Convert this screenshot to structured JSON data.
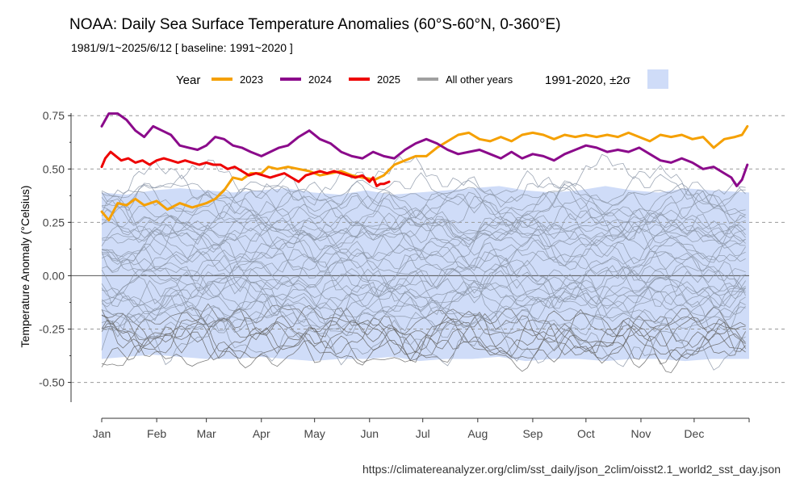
{
  "title": "NOAA: Daily Sea Surface Temperature Anomalies (60°S-60°N, 0-360°E)",
  "subtitle": "1981/9/1~2025/6/12   [ baseline: 1991~2020 ]",
  "source": "https://climatereanalyzer.org/clim/sst_daily/json_2clim/oisst2.1_world2_sst_day.json",
  "chart_data": {
    "type": "line",
    "xlabel": "",
    "ylabel": "Temperature Anomaly (°Celsius)",
    "xlim": [
      1,
      366
    ],
    "ylim": [
      -0.6,
      0.8
    ],
    "x_ticks": [
      {
        "day": 1,
        "label": "Jan"
      },
      {
        "day": 32,
        "label": "Feb"
      },
      {
        "day": 60,
        "label": "Mar"
      },
      {
        "day": 91,
        "label": "Apr"
      },
      {
        "day": 121,
        "label": "May"
      },
      {
        "day": 152,
        "label": "Jun"
      },
      {
        "day": 182,
        "label": "Jul"
      },
      {
        "day": 213,
        "label": "Aug"
      },
      {
        "day": 244,
        "label": "Sep"
      },
      {
        "day": 274,
        "label": "Oct"
      },
      {
        "day": 305,
        "label": "Nov"
      },
      {
        "day": 335,
        "label": "Dec"
      }
    ],
    "y_ticks": [
      {
        "value": 0.75,
        "label": "0.75"
      },
      {
        "value": 0.5,
        "label": "0.50"
      },
      {
        "value": 0.25,
        "label": "0.25"
      },
      {
        "value": 0.0,
        "label": "0.00"
      },
      {
        "value": -0.25,
        "label": "-0.25"
      },
      {
        "value": -0.5,
        "label": "-0.50"
      }
    ],
    "grid": "dashed horizontal at y ticks",
    "legend": {
      "placement": "top",
      "title": "Year",
      "items": [
        {
          "label": "2023",
          "color": "#f5a000"
        },
        {
          "label": "2024",
          "color": "#8b0a8b"
        },
        {
          "label": "2025",
          "color": "#ee0000"
        },
        {
          "label": "All other years",
          "color": "#a0a0a0"
        }
      ],
      "band_label": "1991-2020, ±2σ",
      "band_color": "#cfdcf8"
    },
    "band": {
      "name": "1991-2020, ±2σ",
      "x": [
        1,
        15,
        30,
        45,
        60,
        75,
        90,
        105,
        120,
        135,
        150,
        165,
        180,
        195,
        210,
        225,
        240,
        255,
        270,
        285,
        300,
        315,
        330,
        345,
        366
      ],
      "upper": [
        0.39,
        0.38,
        0.4,
        0.41,
        0.4,
        0.39,
        0.4,
        0.41,
        0.39,
        0.38,
        0.4,
        0.38,
        0.39,
        0.4,
        0.41,
        0.42,
        0.4,
        0.39,
        0.4,
        0.42,
        0.4,
        0.39,
        0.41,
        0.4,
        0.39
      ],
      "lower": [
        -0.39,
        -0.38,
        -0.37,
        -0.38,
        -0.39,
        -0.39,
        -0.38,
        -0.39,
        -0.4,
        -0.39,
        -0.39,
        -0.38,
        -0.4,
        -0.39,
        -0.39,
        -0.38,
        -0.4,
        -0.39,
        -0.39,
        -0.4,
        -0.39,
        -0.39,
        -0.4,
        -0.39,
        -0.39
      ]
    },
    "series": [
      {
        "name": "2023",
        "color": "#f5a000",
        "x": [
          1,
          5,
          10,
          15,
          20,
          25,
          32,
          38,
          45,
          52,
          60,
          65,
          70,
          75,
          80,
          85,
          91,
          95,
          100,
          106,
          112,
          118,
          124,
          130,
          136,
          142,
          148,
          155,
          160,
          166,
          172,
          178,
          184,
          190,
          196,
          202,
          208,
          214,
          220,
          226,
          232,
          238,
          244,
          250,
          256,
          262,
          268,
          274,
          280,
          286,
          292,
          298,
          304,
          310,
          316,
          322,
          328,
          334,
          340,
          346,
          352,
          358,
          362,
          365
        ],
        "values": [
          0.3,
          0.26,
          0.34,
          0.33,
          0.36,
          0.33,
          0.35,
          0.31,
          0.34,
          0.32,
          0.34,
          0.36,
          0.4,
          0.46,
          0.45,
          0.48,
          0.48,
          0.51,
          0.5,
          0.51,
          0.5,
          0.49,
          0.47,
          0.48,
          0.49,
          0.47,
          0.46,
          0.45,
          0.47,
          0.52,
          0.54,
          0.56,
          0.56,
          0.6,
          0.63,
          0.66,
          0.67,
          0.64,
          0.63,
          0.65,
          0.63,
          0.66,
          0.67,
          0.66,
          0.64,
          0.66,
          0.65,
          0.66,
          0.65,
          0.66,
          0.65,
          0.67,
          0.65,
          0.63,
          0.66,
          0.65,
          0.66,
          0.64,
          0.65,
          0.6,
          0.64,
          0.65,
          0.66,
          0.7
        ]
      },
      {
        "name": "2024",
        "color": "#8b0a8b",
        "x": [
          1,
          5,
          10,
          15,
          20,
          25,
          30,
          35,
          40,
          45,
          50,
          55,
          60,
          65,
          70,
          75,
          80,
          85,
          91,
          96,
          101,
          106,
          112,
          118,
          124,
          130,
          136,
          142,
          148,
          154,
          160,
          166,
          172,
          178,
          184,
          190,
          196,
          202,
          208,
          214,
          220,
          226,
          232,
          238,
          244,
          250,
          256,
          262,
          268,
          274,
          280,
          286,
          292,
          298,
          304,
          310,
          316,
          322,
          328,
          334,
          340,
          346,
          352,
          356,
          359,
          362,
          365
        ],
        "values": [
          0.7,
          0.76,
          0.76,
          0.73,
          0.68,
          0.65,
          0.7,
          0.68,
          0.66,
          0.61,
          0.6,
          0.59,
          0.61,
          0.65,
          0.64,
          0.61,
          0.6,
          0.58,
          0.56,
          0.58,
          0.6,
          0.61,
          0.65,
          0.68,
          0.64,
          0.62,
          0.58,
          0.56,
          0.55,
          0.58,
          0.56,
          0.55,
          0.59,
          0.62,
          0.64,
          0.62,
          0.59,
          0.57,
          0.58,
          0.59,
          0.57,
          0.55,
          0.58,
          0.55,
          0.57,
          0.56,
          0.54,
          0.57,
          0.59,
          0.61,
          0.6,
          0.58,
          0.59,
          0.58,
          0.6,
          0.57,
          0.54,
          0.53,
          0.55,
          0.53,
          0.5,
          0.51,
          0.48,
          0.46,
          0.42,
          0.45,
          0.52
        ]
      },
      {
        "name": "2025",
        "color": "#ee0000",
        "x": [
          1,
          3,
          6,
          9,
          12,
          16,
          20,
          24,
          28,
          32,
          36,
          40,
          44,
          48,
          52,
          56,
          60,
          64,
          68,
          72,
          76,
          80,
          84,
          88,
          92,
          96,
          100,
          104,
          108,
          112,
          116,
          120,
          124,
          128,
          132,
          136,
          140,
          144,
          148,
          152,
          154,
          156,
          158,
          160,
          163
        ],
        "values": [
          0.51,
          0.55,
          0.58,
          0.56,
          0.54,
          0.55,
          0.53,
          0.54,
          0.52,
          0.54,
          0.55,
          0.54,
          0.53,
          0.54,
          0.53,
          0.52,
          0.53,
          0.52,
          0.52,
          0.5,
          0.51,
          0.49,
          0.47,
          0.48,
          0.47,
          0.46,
          0.47,
          0.48,
          0.46,
          0.44,
          0.47,
          0.48,
          0.49,
          0.48,
          0.49,
          0.48,
          0.47,
          0.46,
          0.47,
          0.44,
          0.46,
          0.42,
          0.43,
          0.43,
          0.44
        ]
      }
    ],
    "other_years": {
      "name": "All other years",
      "count": 43,
      "color": "#8c96a8",
      "approx_means": [
        -0.38,
        -0.33,
        -0.29,
        -0.27,
        -0.25,
        -0.24,
        -0.22,
        -0.21,
        -0.2,
        -0.18,
        -0.17,
        -0.15,
        -0.13,
        -0.11,
        -0.09,
        -0.07,
        -0.05,
        -0.03,
        -0.01,
        0.01,
        0.03,
        0.05,
        0.07,
        0.09,
        0.11,
        0.13,
        0.15,
        0.17,
        0.19,
        0.21,
        0.23,
        0.25,
        0.27,
        0.29,
        0.31,
        0.33,
        0.35,
        0.38,
        0.41,
        0.44,
        -0.3,
        -0.22,
        0.18
      ]
    }
  }
}
